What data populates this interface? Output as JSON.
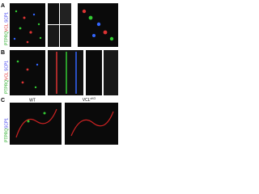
{
  "panels": [
    {
      "label": "A",
      "channels": [
        "PTPRQ",
        "VCL",
        "SCP1"
      ]
    },
    {
      "label": "B",
      "channels": [
        "PTPRQ",
        "VCL",
        "SCP1"
      ]
    },
    {
      "label": "C",
      "channels": [
        "PTPRQ",
        "SCP1"
      ],
      "conditions": [
        "WT",
        "VCL"
      ],
      "superscript": "cKO"
    }
  ]
}
